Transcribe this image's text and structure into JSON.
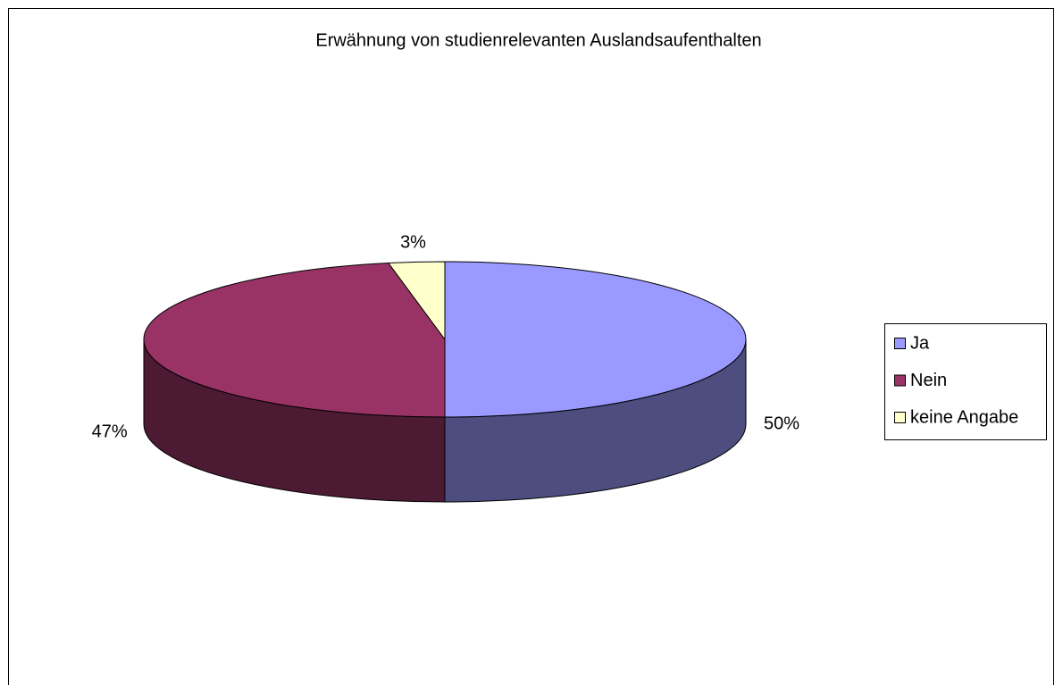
{
  "chart_data": {
    "type": "pie",
    "title": "Erwähnung von studienrelevanten Auslandsaufenthalten",
    "categories": [
      "Ja",
      "Nein",
      "keine Angabe"
    ],
    "values": [
      50,
      47,
      3
    ],
    "value_labels": [
      "50%",
      "47%",
      "3%"
    ],
    "colors": [
      "#9999ff",
      "#993366",
      "#ffffcc"
    ],
    "legend": "right"
  }
}
